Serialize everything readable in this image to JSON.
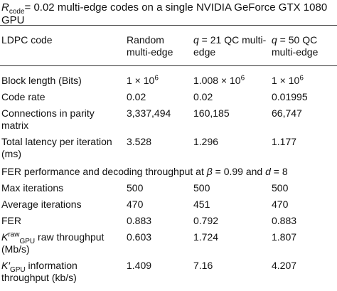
{
  "title": [
    {
      "text": "R",
      "format": "italic"
    },
    {
      "text": "code",
      "format": "sub"
    },
    "= 0.02 multi-edge codes on a single NVIDIA GeForce GTX 1080 GPU"
  ],
  "table": {
    "header": [
      [
        "LDPC code"
      ],
      [
        "Random multi-edge"
      ],
      [
        {
          "text": "q",
          "format": "italic"
        },
        " = 21 QC multi-edge"
      ],
      [
        {
          "text": "q",
          "format": "italic"
        },
        " = 50 QC multi-edge"
      ]
    ],
    "rows": [
      {
        "cells": [
          [
            "Block length (Bits)"
          ],
          [
            "1 × 10",
            {
              "text": "6",
              "format": "sup"
            }
          ],
          [
            "1.008 × 10",
            {
              "text": "6",
              "format": "sup"
            }
          ],
          [
            "1 × 10",
            {
              "text": "6",
              "format": "sup"
            }
          ]
        ]
      },
      {
        "cells": [
          [
            "Code rate"
          ],
          [
            "0.02"
          ],
          [
            "0.02"
          ],
          [
            "0.01995"
          ]
        ]
      },
      {
        "cells": [
          [
            "Connections in parity matrix"
          ],
          [
            "3,337,494"
          ],
          [
            "160,185"
          ],
          [
            "66,747"
          ]
        ]
      },
      {
        "cells": [
          [
            "Total latency per iteration (ms)"
          ],
          [
            "3.528"
          ],
          [
            "1.296"
          ],
          [
            "1.177"
          ]
        ]
      },
      {
        "section": [
          "FER performance and decoding throughput at ",
          {
            "text": "β",
            "format": "italic"
          },
          " = 0.99 and ",
          {
            "text": "d",
            "format": "italic"
          },
          " = 8"
        ]
      },
      {
        "cells": [
          [
            "Max iterations"
          ],
          [
            "500"
          ],
          [
            "500"
          ],
          [
            "500"
          ]
        ]
      },
      {
        "cells": [
          [
            "Average iterations"
          ],
          [
            "470"
          ],
          [
            "451"
          ],
          [
            "470"
          ]
        ]
      },
      {
        "cells": [
          [
            "FER"
          ],
          [
            "0.883"
          ],
          [
            "0.792"
          ],
          [
            "0.883"
          ]
        ]
      },
      {
        "cells": [
          [
            {
              "text": "K",
              "format": "italic"
            },
            {
              "text": "raw",
              "format": "sup"
            },
            {
              "text": "GPU",
              "format": "sub"
            },
            " raw throughput (Mb/s)"
          ],
          [
            "0.603"
          ],
          [
            "1.724"
          ],
          [
            "1.807"
          ]
        ]
      },
      {
        "cells": [
          [
            {
              "text": "K′",
              "format": "italic"
            },
            {
              "text": "GPU",
              "format": "sub"
            },
            " information throughput (kb/s)"
          ],
          [
            "1.409"
          ],
          [
            "7.16"
          ],
          [
            "4.207"
          ]
        ]
      }
    ]
  }
}
